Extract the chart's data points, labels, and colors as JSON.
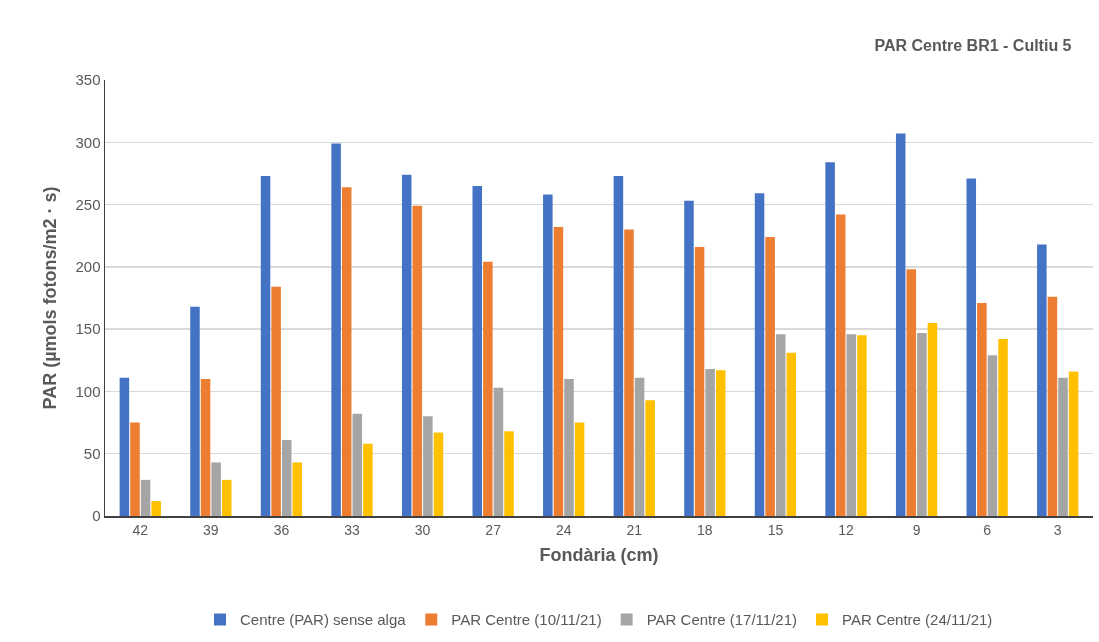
{
  "chart_data": {
    "type": "bar",
    "title": "PAR Centre BR1 - Cultiu 5",
    "xlabel": "Fondària (cm)",
    "ylabel": "PAR (µmols fotons/m2 · s)",
    "categories": [
      "42",
      "39",
      "36",
      "33",
      "30",
      "27",
      "24",
      "21",
      "18",
      "15",
      "12",
      "9",
      "6",
      "3"
    ],
    "series": [
      {
        "name": "Centre (PAR) sense alga",
        "color": "#4472c4",
        "values": [
          111,
          168,
          273,
          299,
          274,
          265,
          258,
          273,
          253,
          259,
          284,
          307,
          271,
          218
        ]
      },
      {
        "name": "PAR Centre (10/11/21)",
        "color": "#ed7d31",
        "values": [
          75,
          110,
          184,
          264,
          249,
          204,
          232,
          230,
          216,
          224,
          242,
          198,
          171,
          176
        ]
      },
      {
        "name": "PAR Centre (17/11/21)",
        "color": "#a5a5a5",
        "values": [
          29,
          43,
          61,
          82,
          80,
          103,
          110,
          111,
          118,
          146,
          146,
          147,
          129,
          111
        ]
      },
      {
        "name": "PAR Centre (24/11/21)",
        "color": "#ffc000",
        "values": [
          12,
          29,
          43,
          58,
          67,
          68,
          75,
          93,
          117,
          131,
          145,
          155,
          142,
          116
        ]
      }
    ],
    "ylim": [
      0,
      350
    ],
    "yticks": [
      0,
      50,
      100,
      150,
      200,
      250,
      300,
      350
    ],
    "grid": "y",
    "legend": "bottom"
  }
}
